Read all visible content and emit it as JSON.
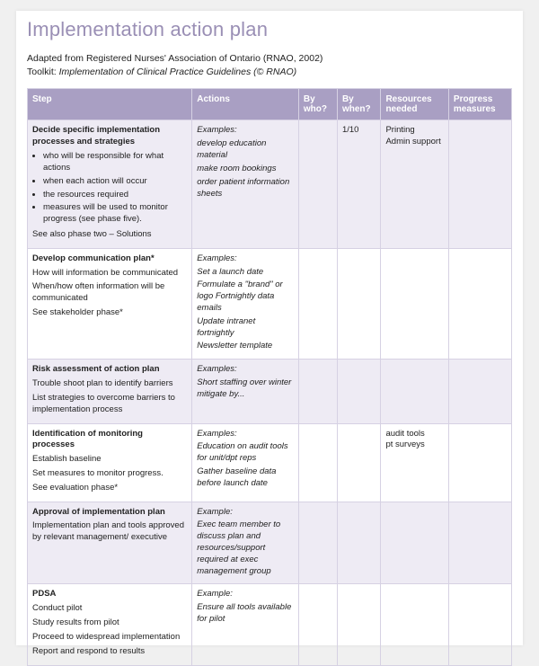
{
  "title": "Implementation action plan",
  "intro_line1": "Adapted from Registered Nurses' Association of Ontario (RNAO, 2002)",
  "intro_line2_prefix": "Toolkit: ",
  "intro_line2_italic": "Implementation of Clinical Practice Guidelines (© RNAO)",
  "headers": {
    "step": "Step",
    "actions": "Actions",
    "by_who": "By who?",
    "by_when": "By when?",
    "resources": "Resources needed",
    "progress": "Progress measures"
  },
  "rows": [
    {
      "step_title": "Decide specific implementation processes and strategies",
      "step_bullets": [
        "who will be responsible for what actions",
        "when each action will occur",
        "the resources required",
        "measures will be used to monitor progress (see phase five)."
      ],
      "step_footer": "See also phase two – Solutions",
      "actions_label": "Examples:",
      "actions_items": [
        "develop education material",
        "make room bookings",
        "order patient information sheets"
      ],
      "by_who": "",
      "by_when": "1/10",
      "resources": "Printing\nAdmin support",
      "progress": ""
    },
    {
      "step_title": "Develop communication plan*",
      "step_lines": [
        "How will information be communicated",
        "When/how often information will be communicated",
        "See stakeholder phase*"
      ],
      "actions_label": "Examples:",
      "actions_items": [
        "Set a launch date",
        "Formulate a \"brand\" or logo Fortnightly data emails",
        "Update intranet fortnightly",
        "Newsletter template"
      ],
      "by_who": "",
      "by_when": "",
      "resources": "",
      "progress": ""
    },
    {
      "step_title": "Risk assessment of action plan",
      "step_lines": [
        "Trouble shoot plan to identify barriers",
        "List strategies to overcome barriers to implementation process"
      ],
      "actions_label": "Examples:",
      "actions_items": [
        "Short staffing over winter mitigate by..."
      ],
      "by_who": "",
      "by_when": "",
      "resources": "",
      "progress": ""
    },
    {
      "step_title": "Identification of monitoring processes",
      "step_lines": [
        "Establish baseline",
        "Set measures to monitor progress.",
        "See evaluation phase*"
      ],
      "actions_label": "Examples:",
      "actions_items": [
        "Education on audit tools for unit/dpt reps",
        "Gather baseline data before launch date"
      ],
      "by_who": "",
      "by_when": "",
      "resources": "audit tools\npt surveys",
      "progress": ""
    },
    {
      "step_title": "Approval of implementation plan",
      "step_lines": [
        "Implementation plan and tools approved by relevant management/ executive"
      ],
      "actions_label": "Example:",
      "actions_items": [
        "Exec team member to discuss plan and resources/support required at exec management group"
      ],
      "by_who": "",
      "by_when": "",
      "resources": "",
      "progress": ""
    },
    {
      "step_title": "PDSA",
      "step_lines": [
        "Conduct pilot",
        "Study results from pilot",
        "Proceed to widespread implementation",
        "Report and respond to results"
      ],
      "actions_label": "Example:",
      "actions_items": [
        "Ensure all tools available for pilot"
      ],
      "by_who": "",
      "by_when": "",
      "resources": "",
      "progress": ""
    }
  ],
  "colors": {
    "heading": "#9a8fb5",
    "header_bg": "#a99fc3",
    "alt_row_bg": "#eeebf4",
    "border": "#d6d1e3"
  }
}
